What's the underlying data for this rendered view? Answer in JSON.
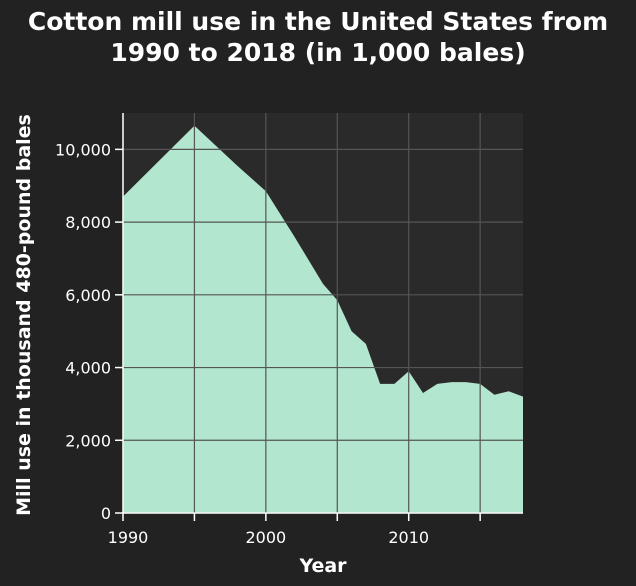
{
  "chart_data": {
    "type": "area",
    "title_lines": [
      "Cotton mill use in the United States from",
      "1990 to 2018 (in 1,000 bales)"
    ],
    "xlabel": "Year",
    "ylabel": "Mill use in thousand 480-pound bales",
    "xlim": [
      1990,
      2018
    ],
    "ylim": [
      0,
      11000
    ],
    "x_ticks": [
      1990,
      1995,
      2000,
      2005,
      2010,
      2015
    ],
    "x_tick_labels": [
      "1990",
      "",
      "2000",
      "",
      "2010",
      ""
    ],
    "y_ticks": [
      0,
      2000,
      4000,
      6000,
      8000,
      10000
    ],
    "y_tick_labels": [
      "0",
      "2,000",
      "4,000",
      "6,000",
      "8,000",
      "10,000"
    ],
    "grid": true,
    "x": [
      1990,
      1995,
      1998,
      2000,
      2002,
      2004,
      2005,
      2006,
      2007,
      2008,
      2009,
      2010,
      2011,
      2012,
      2013,
      2014,
      2015,
      2016,
      2017,
      2018
    ],
    "values": [
      8700,
      10650,
      9550,
      8850,
      7600,
      6300,
      5850,
      5000,
      4650,
      3550,
      3550,
      3900,
      3300,
      3550,
      3600,
      3600,
      3550,
      3250,
      3350,
      3200
    ],
    "colors": {
      "area": "#b3e6cf",
      "background": "#222222",
      "plot_background": "#2a2a2a",
      "grid": "#555555",
      "text": "#ffffff"
    }
  }
}
